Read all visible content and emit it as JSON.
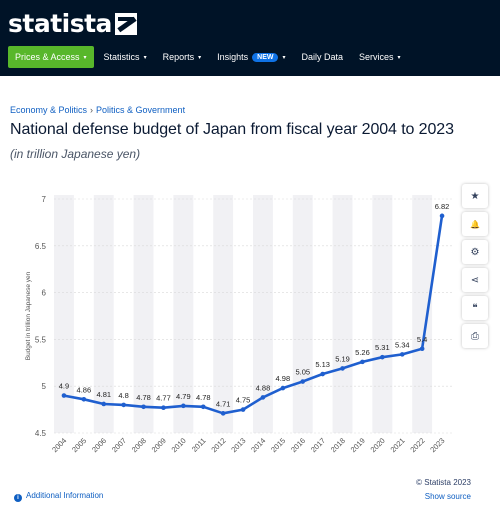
{
  "header": {
    "logo_text": "statista",
    "nav": [
      {
        "label": "Prices & Access",
        "caret": "▾"
      },
      {
        "label": "Statistics",
        "caret": "▾"
      },
      {
        "label": "Reports",
        "caret": "▾"
      },
      {
        "label": "Insights",
        "badge": "NEW",
        "caret": "▾"
      },
      {
        "label": "Daily Data",
        "caret": ""
      },
      {
        "label": "Services",
        "caret": "▾"
      }
    ]
  },
  "breadcrumb": [
    "Economy & Politics",
    "Politics & Government"
  ],
  "breadcrumb_separator": "›",
  "title": "National defense budget of Japan from fiscal year 2004 to 2023",
  "subtitle": "(in trillion Japanese yen)",
  "toolbar": {
    "icons": [
      "star-icon",
      "bell-icon",
      "gear-icon",
      "share-icon",
      "quote-icon",
      "print-icon"
    ],
    "glyphs": [
      "★",
      "🔔",
      "⚙",
      "⋖",
      "❝",
      "⎙"
    ]
  },
  "footer": {
    "info_glyph": "i",
    "additional_info": "Additional Information",
    "copyright": "© Statista 2023",
    "show_source": "Show source"
  },
  "colors": {
    "header_bg": "#001327",
    "nav_active": "#58b72b",
    "badge": "#0f72e5",
    "line": "#1f5fcf",
    "link": "#0f5fc2"
  },
  "chart_data": {
    "type": "line",
    "x": [
      "2004",
      "2005",
      "2006",
      "2007",
      "2008",
      "2009",
      "2010",
      "2011",
      "2012",
      "2013",
      "2014",
      "2015",
      "2016",
      "2017",
      "2018",
      "2019",
      "2020",
      "2021",
      "2022",
      "2023"
    ],
    "series": [
      {
        "values": [
          4.9,
          4.86,
          4.81,
          4.8,
          4.78,
          4.77,
          4.79,
          4.78,
          4.71,
          4.75,
          4.88,
          4.98,
          5.05,
          5.13,
          5.19,
          5.26,
          5.31,
          5.34,
          5.4,
          6.82
        ]
      }
    ],
    "data_labels": [
      "4.9",
      "4.86",
      "4.81",
      "4.8",
      "4.78",
      "4.77",
      "4.79",
      "4.78",
      "4.71",
      "4.75",
      "4.88",
      "4.98",
      "5.05",
      "5.13",
      "5.19",
      "5.26",
      "5.31",
      "5.34",
      "5.4",
      "6.82"
    ],
    "ylabel": "Budget in trillion Japanese yen",
    "xlabel": "",
    "ylim": [
      4.5,
      7
    ],
    "yticks": [
      "7",
      "6.5",
      "6",
      "5.5",
      "5",
      "4.5"
    ],
    "ytick_values": [
      7,
      6.5,
      6,
      5.5,
      5,
      4.5
    ],
    "grid": "horizontal",
    "background_bands": true
  }
}
